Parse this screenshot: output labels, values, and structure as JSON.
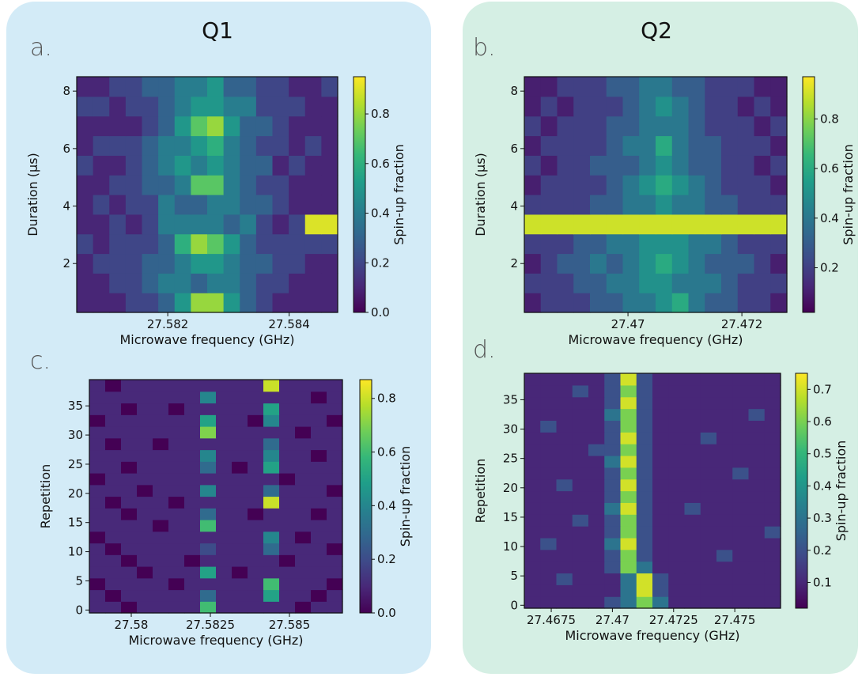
{
  "chart_data": [
    {
      "type": "heatmap",
      "panel_label": "a.",
      "title": "Q1",
      "xlabel": "Microwave frequency (GHz)",
      "ylabel": "Duration (µs)",
      "colorbar_label": "Spin-up fraction",
      "colormap": "viridis",
      "xlim": [
        27.5805,
        27.5848
      ],
      "xticks": [
        27.582,
        27.584
      ],
      "ylim": [
        0.3,
        8.5
      ],
      "yticks": [
        2,
        4,
        6,
        8
      ],
      "clim": [
        0,
        0.95
      ],
      "cticks": [
        {
          "value": 0,
          "label": "0.0"
        },
        0.2,
        0.4,
        0.6,
        0.8
      ],
      "z": [
        [
          0.1,
          0.1,
          0.1,
          0.2,
          0.2,
          0.3,
          0.5,
          0.8,
          0.8,
          0.5,
          0.3,
          0.2,
          0.1,
          0.1,
          0.1,
          0.1
        ],
        [
          0.1,
          0.1,
          0.2,
          0.2,
          0.3,
          0.4,
          0.4,
          0.3,
          0.4,
          0.4,
          0.3,
          0.2,
          0.2,
          0.1,
          0.1,
          0.1
        ],
        [
          0.1,
          0.2,
          0.2,
          0.2,
          0.3,
          0.3,
          0.4,
          0.5,
          0.5,
          0.4,
          0.3,
          0.3,
          0.2,
          0.2,
          0.1,
          0.1
        ],
        [
          0.2,
          0.1,
          0.2,
          0.2,
          0.2,
          0.3,
          0.6,
          0.8,
          0.7,
          0.5,
          0.3,
          0.2,
          0.2,
          0.2,
          0.2,
          0.2
        ],
        [
          0.1,
          0.1,
          0.2,
          0.1,
          0.2,
          0.4,
          0.4,
          0.4,
          0.4,
          0.3,
          0.4,
          0.2,
          0.1,
          0.2,
          0.9,
          0.9
        ],
        [
          0.1,
          0.2,
          0.1,
          0.2,
          0.2,
          0.4,
          0.3,
          0.3,
          0.4,
          0.4,
          0.3,
          0.3,
          0.2,
          0.1,
          0.1,
          0.1
        ],
        [
          0.1,
          0.1,
          0.2,
          0.2,
          0.3,
          0.3,
          0.4,
          0.7,
          0.7,
          0.4,
          0.3,
          0.2,
          0.2,
          0.1,
          0.1,
          0.1
        ],
        [
          0.2,
          0.1,
          0.1,
          0.2,
          0.3,
          0.4,
          0.5,
          0.4,
          0.5,
          0.4,
          0.3,
          0.3,
          0.1,
          0.2,
          0.1,
          0.1
        ],
        [
          0.1,
          0.2,
          0.2,
          0.2,
          0.3,
          0.4,
          0.4,
          0.5,
          0.6,
          0.4,
          0.3,
          0.2,
          0.2,
          0.1,
          0.2,
          0.1
        ],
        [
          0.1,
          0.1,
          0.1,
          0.1,
          0.2,
          0.3,
          0.5,
          0.7,
          0.8,
          0.5,
          0.3,
          0.3,
          0.2,
          0.1,
          0.1,
          0.1
        ],
        [
          0.2,
          0.2,
          0.1,
          0.2,
          0.2,
          0.3,
          0.4,
          0.5,
          0.5,
          0.4,
          0.4,
          0.2,
          0.2,
          0.2,
          0.1,
          0.1
        ],
        [
          0.1,
          0.1,
          0.2,
          0.2,
          0.3,
          0.3,
          0.4,
          0.4,
          0.5,
          0.3,
          0.3,
          0.2,
          0.2,
          0.1,
          0.1,
          0.2
        ]
      ]
    },
    {
      "type": "heatmap",
      "panel_label": "b.",
      "title": "Q2",
      "xlabel": "Microwave frequency (GHz)",
      "ylabel": "Duration (µs)",
      "colorbar_label": "Spin-up fraction",
      "colormap": "viridis",
      "xlim": [
        27.46818,
        27.47279
      ],
      "xticks": [
        27.47,
        27.472
      ],
      "ylim": [
        0.3,
        8.5
      ],
      "yticks": [
        2,
        4,
        6,
        8
      ],
      "clim": [
        0.02,
        0.97
      ],
      "cticks": [
        0.2,
        0.4,
        0.6,
        0.8
      ],
      "z": [
        [
          0.1,
          0.2,
          0.2,
          0.2,
          0.3,
          0.3,
          0.4,
          0.4,
          0.5,
          0.6,
          0.4,
          0.3,
          0.3,
          0.2,
          0.2,
          0.1
        ],
        [
          0.2,
          0.2,
          0.2,
          0.3,
          0.3,
          0.4,
          0.4,
          0.5,
          0.5,
          0.4,
          0.4,
          0.4,
          0.3,
          0.2,
          0.2,
          0.2
        ],
        [
          0.1,
          0.2,
          0.3,
          0.3,
          0.4,
          0.3,
          0.4,
          0.5,
          0.6,
          0.5,
          0.4,
          0.3,
          0.3,
          0.3,
          0.2,
          0.1
        ],
        [
          0.2,
          0.2,
          0.2,
          0.3,
          0.3,
          0.4,
          0.4,
          0.5,
          0.5,
          0.5,
          0.4,
          0.4,
          0.3,
          0.2,
          0.2,
          0.2
        ],
        [
          0.9,
          0.9,
          0.9,
          0.9,
          0.9,
          0.9,
          0.9,
          0.9,
          0.9,
          0.9,
          0.9,
          0.9,
          0.9,
          0.9,
          0.9,
          0.9
        ],
        [
          0.2,
          0.2,
          0.2,
          0.2,
          0.3,
          0.3,
          0.4,
          0.4,
          0.5,
          0.4,
          0.4,
          0.3,
          0.3,
          0.2,
          0.2,
          0.2
        ],
        [
          0.1,
          0.2,
          0.2,
          0.2,
          0.2,
          0.3,
          0.4,
          0.5,
          0.6,
          0.5,
          0.4,
          0.3,
          0.2,
          0.2,
          0.2,
          0.1
        ],
        [
          0.2,
          0.1,
          0.2,
          0.2,
          0.3,
          0.3,
          0.3,
          0.4,
          0.5,
          0.4,
          0.3,
          0.3,
          0.2,
          0.2,
          0.1,
          0.2
        ],
        [
          0.1,
          0.2,
          0.2,
          0.2,
          0.2,
          0.3,
          0.4,
          0.4,
          0.6,
          0.4,
          0.3,
          0.3,
          0.2,
          0.2,
          0.2,
          0.1
        ],
        [
          0.2,
          0.1,
          0.2,
          0.2,
          0.2,
          0.3,
          0.3,
          0.4,
          0.4,
          0.4,
          0.3,
          0.2,
          0.2,
          0.2,
          0.1,
          0.2
        ],
        [
          0.1,
          0.2,
          0.1,
          0.2,
          0.2,
          0.2,
          0.3,
          0.4,
          0.5,
          0.4,
          0.3,
          0.2,
          0.2,
          0.1,
          0.2,
          0.1
        ],
        [
          0.1,
          0.1,
          0.2,
          0.2,
          0.2,
          0.3,
          0.3,
          0.4,
          0.4,
          0.3,
          0.3,
          0.2,
          0.2,
          0.2,
          0.1,
          0.1
        ]
      ]
    },
    {
      "type": "heatmap",
      "panel_label": "c.",
      "xlabel": "Microwave frequency (GHz)",
      "ylabel": "Repetition",
      "colorbar_label": "Spin-up fraction",
      "colormap": "viridis",
      "xlim": [
        27.578675,
        27.586675
      ],
      "xticks": [
        27.58,
        27.5825,
        27.585
      ],
      "ylim": [
        -0.5,
        39.5
      ],
      "yticks": [
        0,
        5,
        10,
        15,
        20,
        25,
        30,
        35
      ],
      "clim": [
        0,
        0.87
      ],
      "cticks": [
        {
          "value": 0,
          "label": "0.0"
        },
        0.2,
        0.4,
        0.6,
        0.8
      ],
      "z": [
        [
          0.1,
          0.1,
          0.0,
          0.1,
          0.1,
          0.1,
          0.1,
          0.6,
          0.1,
          0.1,
          0.1,
          0.1,
          0.1,
          0.0,
          0.1,
          0.1
        ],
        [
          0.1,
          0.0,
          0.1,
          0.1,
          0.1,
          0.1,
          0.1,
          0.3,
          0.1,
          0.1,
          0.1,
          0.5,
          0.1,
          0.1,
          0.0,
          0.1
        ],
        [
          0.0,
          0.1,
          0.1,
          0.1,
          0.1,
          0.0,
          0.1,
          0.1,
          0.1,
          0.1,
          0.1,
          0.6,
          0.1,
          0.1,
          0.1,
          0.0
        ],
        [
          0.1,
          0.1,
          0.1,
          0.0,
          0.1,
          0.1,
          0.1,
          0.5,
          0.1,
          0.0,
          0.1,
          0.1,
          0.1,
          0.1,
          0.1,
          0.1
        ],
        [
          0.1,
          0.1,
          0.0,
          0.1,
          0.1,
          0.1,
          0.0,
          0.1,
          0.1,
          0.1,
          0.1,
          0.1,
          0.0,
          0.1,
          0.1,
          0.1
        ],
        [
          0.1,
          0.0,
          0.1,
          0.1,
          0.1,
          0.1,
          0.1,
          0.2,
          0.1,
          0.1,
          0.1,
          0.3,
          0.1,
          0.1,
          0.1,
          0.0
        ],
        [
          0.0,
          0.1,
          0.1,
          0.1,
          0.1,
          0.1,
          0.1,
          0.1,
          0.1,
          0.1,
          0.1,
          0.4,
          0.1,
          0.0,
          0.1,
          0.1
        ],
        [
          0.1,
          0.1,
          0.1,
          0.1,
          0.0,
          0.1,
          0.1,
          0.6,
          0.1,
          0.1,
          0.1,
          0.1,
          0.1,
          0.1,
          0.1,
          0.1
        ],
        [
          0.1,
          0.1,
          0.0,
          0.1,
          0.1,
          0.1,
          0.1,
          0.3,
          0.1,
          0.1,
          0.0,
          0.1,
          0.1,
          0.1,
          0.0,
          0.1
        ],
        [
          0.1,
          0.0,
          0.1,
          0.1,
          0.1,
          0.0,
          0.1,
          0.1,
          0.1,
          0.1,
          0.1,
          0.8,
          0.1,
          0.1,
          0.1,
          0.1
        ],
        [
          0.1,
          0.1,
          0.1,
          0.0,
          0.1,
          0.1,
          0.1,
          0.4,
          0.1,
          0.1,
          0.1,
          0.3,
          0.1,
          0.1,
          0.1,
          0.0
        ],
        [
          0.0,
          0.1,
          0.1,
          0.1,
          0.1,
          0.1,
          0.1,
          0.1,
          0.1,
          0.1,
          0.1,
          0.1,
          0.0,
          0.1,
          0.1,
          0.1
        ],
        [
          0.1,
          0.1,
          0.0,
          0.1,
          0.1,
          0.1,
          0.1,
          0.3,
          0.1,
          0.0,
          0.1,
          0.5,
          0.1,
          0.1,
          0.1,
          0.1
        ],
        [
          0.1,
          0.1,
          0.1,
          0.1,
          0.1,
          0.1,
          0.1,
          0.4,
          0.1,
          0.1,
          0.1,
          0.4,
          0.1,
          0.1,
          0.0,
          0.1
        ],
        [
          0.1,
          0.0,
          0.1,
          0.1,
          0.0,
          0.1,
          0.1,
          0.1,
          0.1,
          0.1,
          0.1,
          0.3,
          0.1,
          0.1,
          0.1,
          0.1
        ],
        [
          0.1,
          0.1,
          0.1,
          0.1,
          0.1,
          0.1,
          0.1,
          0.7,
          0.1,
          0.1,
          0.1,
          0.1,
          0.1,
          0.0,
          0.1,
          0.1
        ],
        [
          0.0,
          0.1,
          0.1,
          0.1,
          0.1,
          0.1,
          0.1,
          0.5,
          0.1,
          0.1,
          0.0,
          0.4,
          0.1,
          0.1,
          0.1,
          0.0
        ],
        [
          0.1,
          0.1,
          0.0,
          0.1,
          0.1,
          0.0,
          0.1,
          0.1,
          0.1,
          0.1,
          0.1,
          0.5,
          0.1,
          0.1,
          0.1,
          0.1
        ],
        [
          0.1,
          0.1,
          0.1,
          0.1,
          0.1,
          0.1,
          0.1,
          0.4,
          0.1,
          0.1,
          0.1,
          0.1,
          0.1,
          0.1,
          0.0,
          0.1
        ],
        [
          0.1,
          0.0,
          0.1,
          0.1,
          0.1,
          0.1,
          0.1,
          0.1,
          0.1,
          0.1,
          0.1,
          0.8,
          0.1,
          0.1,
          0.1,
          0.1
        ]
      ]
    },
    {
      "type": "heatmap",
      "panel_label": "d.",
      "xlabel": "Microwave frequency (GHz)",
      "ylabel": "Repetition",
      "colorbar_label": "Spin-up fraction",
      "colormap": "viridis",
      "xlim": [
        27.4664,
        27.47687
      ],
      "xticks": [
        27.4675,
        27.47,
        27.4725,
        27.475
      ],
      "ylim": [
        -0.5,
        39.5
      ],
      "yticks": [
        0,
        5,
        10,
        15,
        20,
        25,
        30,
        35
      ],
      "clim": [
        0.02,
        0.75
      ],
      "cticks": [
        0.1,
        0.2,
        0.3,
        0.4,
        0.5,
        0.6,
        0.7
      ],
      "z": [
        [
          0.1,
          0.1,
          0.1,
          0.1,
          0.1,
          0.2,
          0.3,
          0.6,
          0.3,
          0.1,
          0.1,
          0.1,
          0.1,
          0.1,
          0.1,
          0.1
        ],
        [
          0.1,
          0.1,
          0.1,
          0.1,
          0.1,
          0.1,
          0.3,
          0.7,
          0.2,
          0.1,
          0.1,
          0.1,
          0.1,
          0.1,
          0.1,
          0.1
        ],
        [
          0.1,
          0.1,
          0.2,
          0.1,
          0.1,
          0.1,
          0.3,
          0.7,
          0.2,
          0.1,
          0.1,
          0.1,
          0.1,
          0.1,
          0.1,
          0.1
        ],
        [
          0.1,
          0.1,
          0.1,
          0.1,
          0.1,
          0.2,
          0.6,
          0.3,
          0.1,
          0.1,
          0.1,
          0.1,
          0.1,
          0.1,
          0.1,
          0.1
        ],
        [
          0.1,
          0.1,
          0.1,
          0.1,
          0.1,
          0.2,
          0.6,
          0.2,
          0.1,
          0.1,
          0.1,
          0.1,
          0.2,
          0.1,
          0.1,
          0.1
        ],
        [
          0.1,
          0.2,
          0.1,
          0.1,
          0.1,
          0.3,
          0.7,
          0.2,
          0.1,
          0.1,
          0.1,
          0.1,
          0.1,
          0.1,
          0.1,
          0.1
        ],
        [
          0.1,
          0.1,
          0.1,
          0.1,
          0.1,
          0.2,
          0.6,
          0.2,
          0.1,
          0.1,
          0.1,
          0.1,
          0.1,
          0.1,
          0.1,
          0.2
        ],
        [
          0.1,
          0.1,
          0.1,
          0.2,
          0.1,
          0.2,
          0.6,
          0.2,
          0.1,
          0.1,
          0.1,
          0.1,
          0.1,
          0.1,
          0.1,
          0.1
        ],
        [
          0.1,
          0.1,
          0.1,
          0.1,
          0.1,
          0.3,
          0.7,
          0.2,
          0.1,
          0.1,
          0.2,
          0.1,
          0.1,
          0.1,
          0.1,
          0.1
        ],
        [
          0.1,
          0.1,
          0.1,
          0.1,
          0.1,
          0.2,
          0.6,
          0.2,
          0.1,
          0.1,
          0.1,
          0.1,
          0.1,
          0.1,
          0.1,
          0.1
        ],
        [
          0.1,
          0.1,
          0.2,
          0.1,
          0.1,
          0.2,
          0.7,
          0.2,
          0.1,
          0.1,
          0.1,
          0.1,
          0.1,
          0.1,
          0.1,
          0.1
        ],
        [
          0.1,
          0.1,
          0.1,
          0.1,
          0.1,
          0.2,
          0.6,
          0.2,
          0.1,
          0.1,
          0.1,
          0.1,
          0.1,
          0.2,
          0.1,
          0.1
        ],
        [
          0.1,
          0.1,
          0.1,
          0.1,
          0.1,
          0.3,
          0.7,
          0.2,
          0.1,
          0.1,
          0.1,
          0.1,
          0.1,
          0.1,
          0.1,
          0.1
        ],
        [
          0.1,
          0.1,
          0.1,
          0.1,
          0.2,
          0.2,
          0.6,
          0.2,
          0.1,
          0.1,
          0.1,
          0.1,
          0.1,
          0.1,
          0.1,
          0.1
        ],
        [
          0.1,
          0.1,
          0.1,
          0.1,
          0.1,
          0.2,
          0.7,
          0.2,
          0.1,
          0.1,
          0.1,
          0.2,
          0.1,
          0.1,
          0.1,
          0.1
        ],
        [
          0.1,
          0.2,
          0.1,
          0.1,
          0.1,
          0.2,
          0.6,
          0.2,
          0.1,
          0.1,
          0.1,
          0.1,
          0.1,
          0.1,
          0.1,
          0.1
        ],
        [
          0.1,
          0.1,
          0.1,
          0.1,
          0.1,
          0.3,
          0.6,
          0.2,
          0.1,
          0.1,
          0.1,
          0.1,
          0.1,
          0.1,
          0.2,
          0.1
        ],
        [
          0.1,
          0.1,
          0.1,
          0.1,
          0.1,
          0.2,
          0.7,
          0.2,
          0.1,
          0.1,
          0.1,
          0.1,
          0.1,
          0.1,
          0.1,
          0.1
        ],
        [
          0.1,
          0.1,
          0.1,
          0.2,
          0.1,
          0.2,
          0.6,
          0.2,
          0.1,
          0.1,
          0.1,
          0.1,
          0.1,
          0.1,
          0.1,
          0.1
        ],
        [
          0.1,
          0.1,
          0.1,
          0.1,
          0.1,
          0.2,
          0.7,
          0.2,
          0.1,
          0.1,
          0.1,
          0.1,
          0.1,
          0.1,
          0.1,
          0.1
        ]
      ]
    }
  ]
}
